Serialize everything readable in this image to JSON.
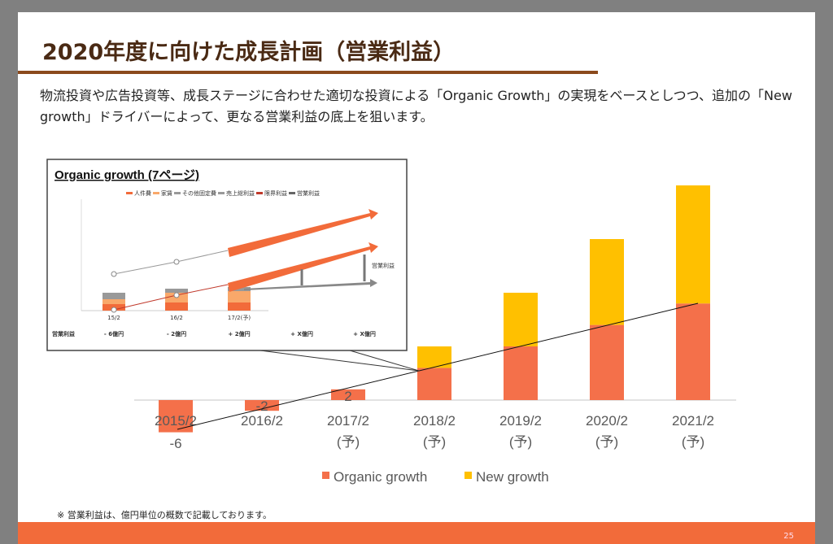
{
  "slide": {
    "title": "2020年度に向けた成長計画（営業利益）",
    "description": "物流投資や広告投資等、成長ステージに合わせた適切な投資による「Organic Growth」の実現をベースとしつつ、追加の「New growth」ドライバーによって、更なる営業利益の底上を狙います。",
    "note": "※ 営業利益は、億円単位の概数で記載しております。",
    "page_number": "25"
  },
  "inset": {
    "title": "Organic growth (7ページ)",
    "legend": [
      "人件費",
      "家賃",
      "その他固定費",
      "売上総利益",
      "限界利益",
      "営業利益"
    ],
    "categories": [
      "15/2",
      "16/2",
      "17/2(予)"
    ],
    "arrow_label": "営業利益",
    "row_label": "営業利益",
    "row_values": [
      "- 6億円",
      "- 2億円",
      "+ 2億円",
      "+ X億円",
      "+ X億円"
    ]
  },
  "chart_data": {
    "type": "bar",
    "stacked": true,
    "categories": [
      "2015/2",
      "2016/2",
      "2017/2\n(予)",
      "2018/2\n(予)",
      "2019/2\n(予)",
      "2020/2\n(予)",
      "2021/2\n(予)"
    ],
    "category_lines": [
      [
        "2015/2"
      ],
      [
        "2016/2"
      ],
      [
        "2017/2",
        "(予)"
      ],
      [
        "2018/2",
        "(予)"
      ],
      [
        "2019/2",
        "(予)"
      ],
      [
        "2020/2",
        "(予)"
      ],
      [
        "2021/2",
        "(予)"
      ]
    ],
    "series": [
      {
        "name": "Organic growth",
        "color": "#f4704a",
        "values": [
          -6,
          -2,
          2,
          6,
          10,
          14,
          18
        ]
      },
      {
        "name": "New growth",
        "color": "#ffc000",
        "values": [
          0,
          0,
          0,
          4,
          10,
          16,
          22
        ]
      }
    ],
    "data_labels": [
      "-6",
      "-2",
      "2",
      "",
      "",
      "",
      ""
    ],
    "legend_position": "bottom",
    "grid": false,
    "trend_line": true
  }
}
